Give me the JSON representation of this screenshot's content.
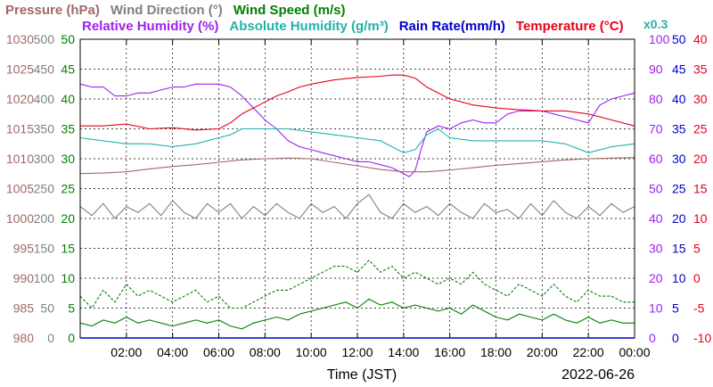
{
  "chart_data": {
    "type": "line",
    "legend": {
      "row1": [
        {
          "text": "Pressure (hPa)",
          "color": "#a06868"
        },
        {
          "text": "Wind Direction (°)",
          "color": "#808080"
        },
        {
          "text": "Wind Speed (m/s)",
          "color": "#008000"
        }
      ],
      "row2": [
        {
          "text": "Relative Humidity (%)",
          "color": "#a020f0"
        },
        {
          "text": "Absolute Humidity (g/m³)",
          "color": "#20b2aa"
        },
        {
          "text": "Rain Rate(mm/h)",
          "color": "#0000cc"
        },
        {
          "text": "Temperature (°C)",
          "color": "#e8001c"
        }
      ],
      "multiplier": {
        "text": "x0.3",
        "color": "#20b2aa"
      }
    },
    "xlabel": "Time (JST)",
    "date": "2022-06-26",
    "xlim": [
      0,
      24
    ],
    "x_ticks": [
      {
        "h": 2,
        "label": "02:00"
      },
      {
        "h": 4,
        "label": "04:00"
      },
      {
        "h": 6,
        "label": "06:00"
      },
      {
        "h": 8,
        "label": "08:00"
      },
      {
        "h": 10,
        "label": "10:00"
      },
      {
        "h": 12,
        "label": "12:00"
      },
      {
        "h": 14,
        "label": "14:00"
      },
      {
        "h": 16,
        "label": "16:00"
      },
      {
        "h": 18,
        "label": "18:00"
      },
      {
        "h": 20,
        "label": "20:00"
      },
      {
        "h": 22,
        "label": "22:00"
      },
      {
        "h": 24,
        "label": "00:00"
      }
    ],
    "axes": {
      "pressure": {
        "color": "#a06868",
        "ticks": [
          "980",
          "985",
          "990",
          "995",
          "1000",
          "1005",
          "1010",
          "1015",
          "1020",
          "1025",
          "1030"
        ]
      },
      "wind_direction": {
        "color": "#808080",
        "ticks": [
          "0",
          "50",
          "100",
          "150",
          "200",
          "250",
          "300",
          "350",
          "400",
          "450",
          "500"
        ]
      },
      "wind_speed": {
        "color": "#008000",
        "ticks": [
          "0",
          "5",
          "10",
          "15",
          "20",
          "25",
          "30",
          "35",
          "40",
          "45",
          "50"
        ]
      },
      "humidity": {
        "color": "#a020f0",
        "ticks": [
          "0",
          "10",
          "20",
          "30",
          "40",
          "50",
          "60",
          "70",
          "80",
          "90",
          "100"
        ]
      },
      "rain_rate": {
        "color": "#0000cc",
        "ticks": [
          "0",
          "5",
          "10",
          "15",
          "20",
          "25",
          "30",
          "35",
          "40",
          "45",
          "50"
        ]
      },
      "temperature": {
        "color": "#e8001c",
        "ticks": [
          "-10",
          "-5",
          "0",
          "5",
          "10",
          "15",
          "20",
          "25",
          "30",
          "35",
          "40"
        ]
      }
    },
    "grid": true,
    "series": [
      {
        "name": "Relative Humidity (%)",
        "color": "#a020f0",
        "axis": "humidity",
        "range": [
          0,
          100
        ],
        "x": [
          0,
          0.5,
          1,
          1.5,
          2,
          2.5,
          3,
          3.5,
          4,
          4.5,
          5,
          5.5,
          6,
          6.5,
          7,
          7.5,
          8,
          8.5,
          9,
          9.5,
          10,
          10.5,
          11,
          11.5,
          12,
          12.5,
          13,
          13.5,
          14,
          14.25,
          14.5,
          14.75,
          15,
          15.5,
          16,
          16.5,
          17,
          17.5,
          18,
          18.5,
          19,
          19.5,
          20,
          20.5,
          21,
          21.5,
          22,
          22.5,
          23,
          23.5,
          24
        ],
        "y": [
          85,
          84,
          84,
          81,
          81,
          82,
          82,
          83,
          84,
          84,
          85,
          85,
          85,
          84,
          81,
          77,
          73,
          70,
          66,
          64,
          63,
          62,
          61,
          60,
          59,
          59,
          58,
          57,
          55,
          54,
          56,
          63,
          69,
          71,
          70,
          72,
          73,
          72,
          72,
          75,
          76,
          76,
          76,
          75,
          74,
          73,
          72,
          78,
          80,
          81,
          82
        ]
      },
      {
        "name": "Absolute Humidity (g/m³)",
        "color": "#20b2aa",
        "axis": "humidity",
        "range": [
          0,
          100
        ],
        "x": [
          0,
          1,
          2,
          3,
          4,
          5,
          6,
          6.5,
          7,
          8,
          9,
          10,
          11,
          12,
          13,
          13.5,
          14,
          14.5,
          15,
          15.5,
          16,
          17,
          18,
          19,
          20,
          21,
          22,
          23,
          24
        ],
        "y": [
          67,
          66,
          65,
          65,
          64,
          65,
          67,
          68,
          70,
          70,
          70,
          69,
          68,
          67,
          66,
          64,
          62,
          63,
          68,
          70,
          67,
          66,
          66,
          66,
          66,
          65,
          62,
          64,
          65
        ]
      },
      {
        "name": "Temperature (°C)",
        "color": "#e8001c",
        "axis": "temperature",
        "range": [
          -10,
          40
        ],
        "x": [
          0,
          1,
          2,
          3,
          4,
          5,
          6,
          6.5,
          7,
          7.5,
          8,
          8.5,
          9,
          9.5,
          10,
          11,
          12,
          13,
          13.5,
          14,
          14.5,
          15,
          15.5,
          16,
          16.5,
          17,
          18,
          19,
          20,
          21,
          22,
          23,
          24
        ],
        "y": [
          25.5,
          25.5,
          25.8,
          25,
          25.2,
          24.8,
          25,
          26,
          27.5,
          28.5,
          29.5,
          30.5,
          31.2,
          32,
          32.5,
          33.2,
          33.6,
          33.8,
          34,
          34,
          33.5,
          32,
          31,
          30,
          29.5,
          29,
          28.5,
          28.2,
          28,
          28,
          27.5,
          26.5,
          25.5
        ]
      },
      {
        "name": "Pressure (hPa)",
        "color": "#a06868",
        "axis": "pressure",
        "range": [
          980,
          1030
        ],
        "x": [
          0,
          1,
          2,
          3,
          4,
          5,
          6,
          7,
          8,
          9,
          10,
          11,
          12,
          13,
          14,
          15,
          16,
          17,
          18,
          19,
          20,
          21,
          22,
          23,
          24
        ],
        "y": [
          1007.5,
          1007.6,
          1007.8,
          1008.3,
          1008.7,
          1009,
          1009.4,
          1009.8,
          1010,
          1010.1,
          1010,
          1009.4,
          1008.8,
          1008.2,
          1007.8,
          1007.8,
          1008.1,
          1008.5,
          1008.9,
          1009.2,
          1009.5,
          1009.8,
          1010,
          1010.1,
          1010.2
        ]
      },
      {
        "name": "Wind Direction (°)",
        "color": "#808080",
        "axis": "wind_direction",
        "range": [
          0,
          500
        ],
        "x": [
          0,
          0.5,
          1,
          1.5,
          2,
          2.5,
          3,
          3.5,
          4,
          4.5,
          5,
          5.5,
          6,
          6.5,
          7,
          7.5,
          8,
          8.5,
          9,
          9.5,
          10,
          10.5,
          11,
          11.5,
          12,
          12.5,
          13,
          13.5,
          14,
          14.5,
          15,
          15.5,
          16,
          16.5,
          17,
          17.5,
          18,
          18.5,
          19,
          19.5,
          20,
          20.5,
          21,
          21.5,
          22,
          22.5,
          23,
          23.5,
          24
        ],
        "y": [
          220,
          205,
          225,
          200,
          220,
          210,
          225,
          205,
          230,
          210,
          200,
          225,
          210,
          225,
          200,
          220,
          205,
          225,
          210,
          200,
          225,
          210,
          220,
          200,
          225,
          240,
          210,
          200,
          225,
          210,
          220,
          205,
          225,
          210,
          200,
          225,
          210,
          215,
          200,
          225,
          205,
          230,
          210,
          200,
          220,
          205,
          225,
          210,
          220
        ]
      },
      {
        "name": "Wind Speed (m/s)",
        "color": "#008000",
        "axis": "wind_speed",
        "range": [
          0,
          50
        ],
        "x": [
          0,
          0.5,
          1,
          1.5,
          2,
          2.5,
          3,
          3.5,
          4,
          4.5,
          5,
          5.5,
          6,
          6.5,
          7,
          7.5,
          8,
          8.5,
          9,
          9.5,
          10,
          10.5,
          11,
          11.5,
          12,
          12.5,
          13,
          13.5,
          14,
          14.5,
          15,
          15.5,
          16,
          16.5,
          17,
          17.5,
          18,
          18.5,
          19,
          19.5,
          20,
          20.5,
          21,
          21.5,
          22,
          22.5,
          23,
          23.5,
          24
        ],
        "y": [
          2.5,
          2,
          3,
          2.5,
          3.5,
          2.5,
          3,
          2.5,
          2,
          2.5,
          3,
          2.5,
          3,
          2,
          1.5,
          2.5,
          3,
          3.5,
          3,
          4,
          4.5,
          5,
          5.5,
          6,
          5,
          6.5,
          5.5,
          6,
          5,
          5.5,
          5,
          4.5,
          5,
          4,
          5.5,
          4.5,
          3.5,
          3,
          4,
          3.5,
          3,
          4,
          3,
          2.5,
          3.5,
          2.5,
          3,
          2.5,
          2.5
        ]
      },
      {
        "name": "Wind Speed gust",
        "color": "#008000",
        "axis": "wind_speed",
        "range": [
          0,
          50
        ],
        "dashed": true,
        "x": [
          0,
          0.5,
          1,
          1.5,
          2,
          2.5,
          3,
          3.5,
          4,
          4.5,
          5,
          5.5,
          6,
          6.5,
          7,
          7.5,
          8,
          8.5,
          9,
          9.5,
          10,
          10.5,
          11,
          11.5,
          12,
          12.5,
          13,
          13.5,
          14,
          14.5,
          15,
          15.5,
          16,
          16.5,
          17,
          17.5,
          18,
          18.5,
          19,
          19.5,
          20,
          20.5,
          21,
          21.5,
          22,
          22.5,
          23,
          23.5,
          24
        ],
        "y": [
          7,
          5,
          8,
          6,
          9,
          7,
          8,
          7,
          6,
          7,
          8,
          6,
          7,
          5,
          5,
          6,
          7,
          8,
          8,
          9,
          10,
          11,
          12,
          12,
          11,
          13,
          11,
          12,
          10,
          11,
          10,
          9,
          10,
          9,
          11,
          9,
          8,
          7,
          9,
          8,
          7,
          9,
          7,
          6,
          8,
          7,
          7,
          6,
          6
        ]
      }
    ]
  }
}
